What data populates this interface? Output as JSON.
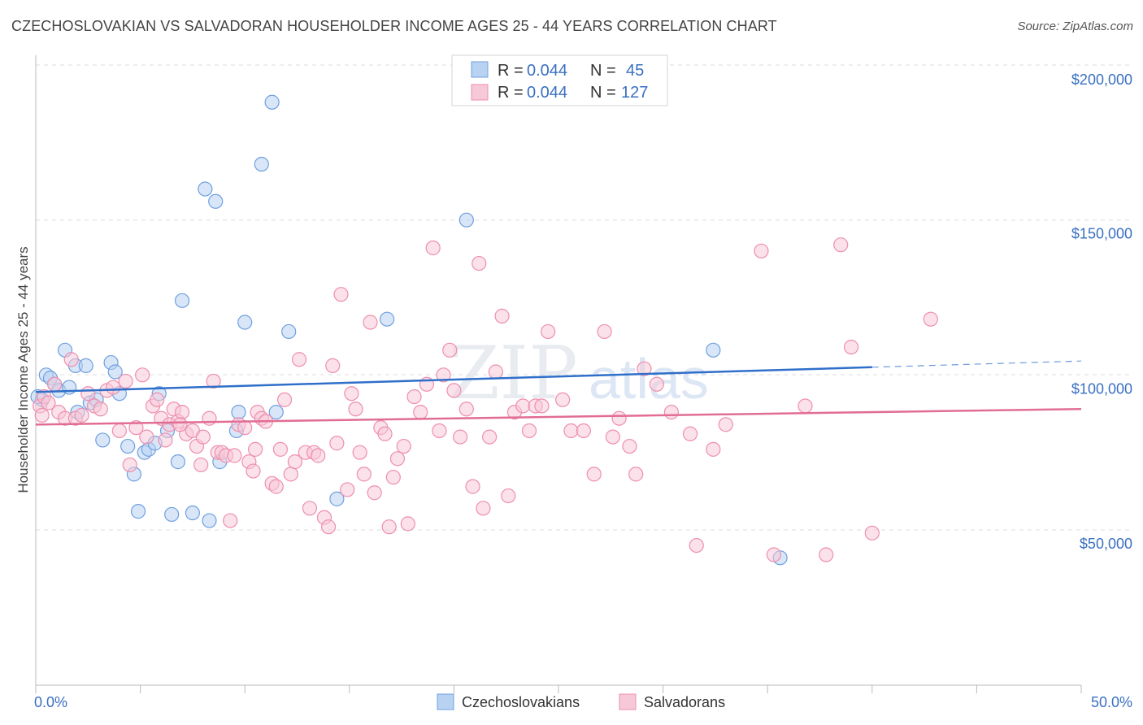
{
  "title": "CZECHOSLOVAKIAN VS SALVADORAN HOUSEHOLDER INCOME AGES 25 - 44 YEARS CORRELATION CHART",
  "source": "Source: ZipAtlas.com",
  "watermark": {
    "zip": "ZIP",
    "atlas": "atlas"
  },
  "legend_top": {
    "rows": [
      {
        "r_label": "R =",
        "r_value": "0.044",
        "n_label": "N =",
        "n_value": "45",
        "color": "#a8c8f0"
      },
      {
        "r_label": "R =",
        "r_value": "0.044",
        "n_label": "N =",
        "n_value": "127",
        "color": "#f5b8cc"
      }
    ]
  },
  "legend_bottom": [
    "Czechoslovakians",
    "Salvadorans"
  ],
  "chart_data": {
    "type": "scatter",
    "ylabel": "Householder Income Ages 25 - 44 years",
    "x_tick_labels": [
      "0.0%",
      "50.0%"
    ],
    "y_tick_labels": [
      "$200,000",
      "$150,000",
      "$100,000",
      "$50,000"
    ],
    "xlim": [
      0,
      50
    ],
    "ylim": [
      10000,
      210000
    ],
    "y_ticks": [
      200000,
      150000,
      100000,
      50000
    ],
    "grid": "horizontal dashed",
    "series": [
      {
        "name": "Czechoslovakians",
        "color": "#6fa0e0",
        "fill": "#b8d2f2",
        "trend": {
          "x0": 0,
          "y0": 94500,
          "x1": 40,
          "y1": 102500,
          "dash_to": 50,
          "dash_y": 104500,
          "color": "#2f6fca"
        },
        "points": [
          [
            0.3,
            92000
          ],
          [
            0.5,
            100000
          ],
          [
            0.7,
            99000
          ],
          [
            0.9,
            97000
          ],
          [
            1.1,
            95000
          ],
          [
            1.4,
            108000
          ],
          [
            1.6,
            96000
          ],
          [
            1.9,
            103000
          ],
          [
            2.0,
            88000
          ],
          [
            2.4,
            103000
          ],
          [
            2.6,
            91000
          ],
          [
            2.9,
            92000
          ],
          [
            3.2,
            79000
          ],
          [
            3.6,
            104000
          ],
          [
            3.8,
            101000
          ],
          [
            4.0,
            94000
          ],
          [
            4.4,
            77000
          ],
          [
            4.7,
            68000
          ],
          [
            4.9,
            56000
          ],
          [
            5.2,
            75000
          ],
          [
            5.4,
            76000
          ],
          [
            5.7,
            78000
          ],
          [
            5.9,
            94000
          ],
          [
            6.3,
            82000
          ],
          [
            6.5,
            55000
          ],
          [
            6.8,
            72000
          ],
          [
            7.0,
            124000
          ],
          [
            7.5,
            55500
          ],
          [
            8.1,
            160000
          ],
          [
            8.3,
            53000
          ],
          [
            8.6,
            156000
          ],
          [
            8.8,
            72000
          ],
          [
            9.6,
            82000
          ],
          [
            9.7,
            88000
          ],
          [
            10.0,
            117000
          ],
          [
            10.8,
            168000
          ],
          [
            11.3,
            188000
          ],
          [
            11.5,
            88000
          ],
          [
            12.1,
            114000
          ],
          [
            14.4,
            60000
          ],
          [
            16.8,
            118000
          ],
          [
            20.6,
            150000
          ],
          [
            32.4,
            108000
          ],
          [
            35.6,
            41000
          ],
          [
            0.1,
            93000
          ]
        ]
      },
      {
        "name": "Salvadorans",
        "color": "#ee8fae",
        "fill": "#f7c8d7",
        "trend": {
          "x0": 0,
          "y0": 84000,
          "x1": 50,
          "y1": 89000,
          "color": "#e16d93"
        },
        "points": [
          [
            0.2,
            90000
          ],
          [
            0.4,
            93000
          ],
          [
            0.6,
            91000
          ],
          [
            0.9,
            97000
          ],
          [
            1.1,
            88000
          ],
          [
            1.4,
            86000
          ],
          [
            1.7,
            105000
          ],
          [
            1.9,
            86000
          ],
          [
            2.2,
            87000
          ],
          [
            2.5,
            94000
          ],
          [
            2.8,
            90000
          ],
          [
            3.1,
            89000
          ],
          [
            3.4,
            95000
          ],
          [
            3.7,
            96000
          ],
          [
            4.0,
            82000
          ],
          [
            4.3,
            98000
          ],
          [
            4.5,
            71000
          ],
          [
            4.8,
            83000
          ],
          [
            5.1,
            100000
          ],
          [
            5.3,
            80000
          ],
          [
            5.6,
            90000
          ],
          [
            5.8,
            92000
          ],
          [
            6.0,
            86000
          ],
          [
            6.2,
            79000
          ],
          [
            6.4,
            84000
          ],
          [
            6.6,
            89000
          ],
          [
            6.8,
            85000
          ],
          [
            7.0,
            88000
          ],
          [
            7.2,
            81000
          ],
          [
            7.5,
            82000
          ],
          [
            7.7,
            77000
          ],
          [
            7.9,
            71000
          ],
          [
            8.0,
            80000
          ],
          [
            8.3,
            86000
          ],
          [
            8.5,
            98000
          ],
          [
            8.7,
            75000
          ],
          [
            8.9,
            75000
          ],
          [
            9.1,
            74000
          ],
          [
            9.3,
            53000
          ],
          [
            9.5,
            74000
          ],
          [
            9.7,
            84000
          ],
          [
            10.0,
            83000
          ],
          [
            10.2,
            72000
          ],
          [
            10.4,
            69000
          ],
          [
            10.6,
            88000
          ],
          [
            10.8,
            86000
          ],
          [
            11.0,
            85000
          ],
          [
            11.3,
            65000
          ],
          [
            11.5,
            64000
          ],
          [
            11.7,
            76000
          ],
          [
            11.9,
            92000
          ],
          [
            12.2,
            68000
          ],
          [
            12.4,
            72000
          ],
          [
            12.6,
            105000
          ],
          [
            12.9,
            75000
          ],
          [
            13.1,
            57000
          ],
          [
            13.3,
            75000
          ],
          [
            13.5,
            74000
          ],
          [
            13.8,
            54000
          ],
          [
            14.0,
            51000
          ],
          [
            14.2,
            103000
          ],
          [
            14.4,
            78000
          ],
          [
            14.6,
            126000
          ],
          [
            14.9,
            63000
          ],
          [
            15.1,
            94000
          ],
          [
            15.3,
            89000
          ],
          [
            15.5,
            75000
          ],
          [
            15.7,
            68000
          ],
          [
            16.0,
            117000
          ],
          [
            16.2,
            62000
          ],
          [
            16.5,
            83000
          ],
          [
            16.7,
            81000
          ],
          [
            16.9,
            51000
          ],
          [
            17.1,
            67000
          ],
          [
            17.3,
            73000
          ],
          [
            17.6,
            77000
          ],
          [
            17.8,
            52000
          ],
          [
            18.1,
            93000
          ],
          [
            18.4,
            88000
          ],
          [
            18.7,
            97000
          ],
          [
            19.0,
            141000
          ],
          [
            19.3,
            82000
          ],
          [
            19.5,
            100000
          ],
          [
            19.8,
            108000
          ],
          [
            20.0,
            95000
          ],
          [
            20.3,
            80000
          ],
          [
            20.6,
            89000
          ],
          [
            20.9,
            64000
          ],
          [
            21.2,
            136000
          ],
          [
            21.4,
            57000
          ],
          [
            21.7,
            80000
          ],
          [
            22.0,
            101000
          ],
          [
            22.3,
            119000
          ],
          [
            22.6,
            61000
          ],
          [
            22.9,
            88000
          ],
          [
            23.3,
            90000
          ],
          [
            23.6,
            82000
          ],
          [
            23.9,
            90000
          ],
          [
            24.2,
            90000
          ],
          [
            24.5,
            114000
          ],
          [
            25.2,
            92000
          ],
          [
            25.6,
            82000
          ],
          [
            26.2,
            82000
          ],
          [
            26.7,
            68000
          ],
          [
            27.2,
            114000
          ],
          [
            27.6,
            80000
          ],
          [
            27.9,
            86000
          ],
          [
            28.4,
            77000
          ],
          [
            28.7,
            68000
          ],
          [
            29.1,
            102000
          ],
          [
            29.7,
            97000
          ],
          [
            30.4,
            88000
          ],
          [
            31.3,
            81000
          ],
          [
            31.6,
            45000
          ],
          [
            32.4,
            76000
          ],
          [
            33.0,
            84000
          ],
          [
            34.7,
            140000
          ],
          [
            35.3,
            42000
          ],
          [
            36.8,
            90000
          ],
          [
            37.8,
            42000
          ],
          [
            38.5,
            142000
          ],
          [
            39.0,
            109000
          ],
          [
            40.0,
            49000
          ],
          [
            42.8,
            118000
          ],
          [
            0.3,
            87000
          ],
          [
            6.9,
            84000
          ],
          [
            10.5,
            76000
          ]
        ]
      }
    ]
  }
}
